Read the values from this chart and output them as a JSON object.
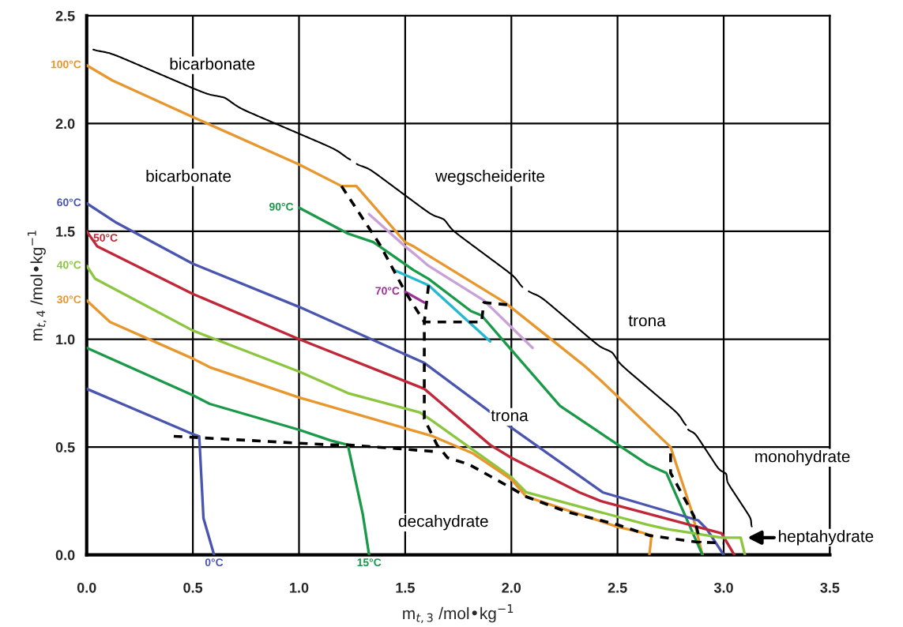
{
  "chart_data": {
    "type": "line",
    "xlabel": "m$_{t,3}$ /mol•kg$^{−1}$",
    "ylabel": "m$_{t,4}$ /mol•kg$^{−1}$",
    "xlim": [
      0,
      3.5
    ],
    "ylim": [
      0,
      2.5
    ],
    "xticks": [
      {
        "value": 0,
        "label": "0.0"
      },
      0.5,
      {
        "value": 1,
        "label": "1.0"
      },
      1.5,
      {
        "value": 2,
        "label": "2.0"
      },
      2.5,
      {
        "value": 3,
        "label": "3.0"
      },
      3.5
    ],
    "yticks": [
      {
        "value": 0,
        "label": "0.0"
      },
      0.5,
      {
        "value": 1,
        "label": "1.0"
      },
      1.5,
      {
        "value": 2,
        "label": "2.0"
      },
      2.5
    ],
    "grid": true,
    "series": [
      {
        "color": "#e8972e",
        "x": [
          0,
          0.12,
          0.5,
          1.0,
          1.2,
          1.27,
          1.5,
          1.54,
          1.97,
          2.34,
          2.42,
          2.75,
          2.85,
          2.9
        ],
        "values": [
          2.27,
          2.2,
          2.03,
          1.81,
          1.71,
          1.71,
          1.45,
          1.43,
          1.17,
          0.88,
          0.81,
          0.5,
          0.2,
          0
        ]
      },
      {
        "color": "#1a9a48",
        "x": [
          1.0,
          1.23,
          1.35,
          1.38,
          1.54,
          1.61,
          1.81,
          1.86,
          2.0,
          2.23,
          2.64,
          2.73,
          2.9
        ],
        "values": [
          1.61,
          1.49,
          1.45,
          1.43,
          1.32,
          1.28,
          1.13,
          1.11,
          0.95,
          0.69,
          0.42,
          0.38,
          0
        ]
      },
      {
        "color": "#c9a0d8",
        "x": [
          1.33,
          1.5,
          1.55,
          1.61,
          1.87,
          2.1
        ],
        "values": [
          1.58,
          1.43,
          1.39,
          1.34,
          1.18,
          0.96
        ]
      },
      {
        "color": "#25b8d0",
        "x": [
          1.45,
          1.61,
          1.9
        ],
        "values": [
          1.32,
          1.25,
          0.99
        ]
      },
      {
        "color": "#a0309a",
        "x": [
          1.5,
          1.59
        ],
        "values": [
          1.22,
          1.17
        ]
      },
      {
        "color": "#4a55b0",
        "x": [
          0,
          0.14,
          0.5,
          1.0,
          1.59,
          2.0,
          2.43,
          2.88,
          2.92,
          3.0
        ],
        "values": [
          1.63,
          1.54,
          1.35,
          1.15,
          0.89,
          0.59,
          0.29,
          0.16,
          0.12,
          0
        ]
      },
      {
        "color": "#c0283a",
        "x": [
          0,
          0.05,
          0.5,
          1.0,
          1.59,
          1.9,
          2.0,
          2.32,
          2.42,
          2.99,
          3.05
        ],
        "values": [
          1.5,
          1.43,
          1.21,
          1.0,
          0.77,
          0.51,
          0.45,
          0.29,
          0.25,
          0.1,
          0
        ]
      },
      {
        "color": "#8cc63f",
        "x": [
          0,
          0.04,
          0.5,
          1.0,
          1.23,
          1.57,
          1.63,
          2.0,
          2.07,
          2.64,
          2.73,
          2.99,
          3.08,
          3.1
        ],
        "values": [
          1.34,
          1.28,
          1.04,
          0.85,
          0.75,
          0.66,
          0.62,
          0.36,
          0.29,
          0.14,
          0.12,
          0.08,
          0.08,
          0
        ]
      },
      {
        "color": "#e8972e",
        "x": [
          0,
          0.11,
          0.5,
          0.58,
          1.0,
          1.63,
          1.82,
          2.0,
          2.07,
          2.5,
          2.61,
          2.66,
          2.65
        ],
        "values": [
          1.18,
          1.08,
          0.91,
          0.87,
          0.73,
          0.55,
          0.47,
          0.35,
          0.27,
          0.13,
          0.105,
          0.09,
          0
        ]
      },
      {
        "color": "#1a9a48",
        "x": [
          0,
          0.5,
          0.58,
          1.0,
          1.15,
          1.23,
          1.3,
          1.33
        ],
        "values": [
          0.96,
          0.74,
          0.7,
          0.58,
          0.53,
          0.51,
          0.19,
          0
        ]
      },
      {
        "color": "#4a55b0",
        "x": [
          0,
          0.5,
          0.53,
          0.55,
          0.6
        ],
        "values": [
          0.77,
          0.56,
          0.55,
          0.17,
          0
        ]
      },
      {
        "color": "#000000",
        "line_style": "dashed",
        "x": [
          1.2,
          1.38,
          1.5,
          1.59,
          1.86,
          1.87,
          1.98
        ],
        "values": [
          1.71,
          1.44,
          1.22,
          1.08,
          1.08,
          1.17,
          1.16
        ]
      },
      {
        "color": "#000000",
        "line_style": "dashed",
        "x": [
          1.61,
          1.59,
          1.59,
          1.59,
          1.65,
          1.7,
          1.8,
          2.0,
          2.07,
          2.26,
          2.5,
          2.65,
          2.87,
          3.0
        ],
        "values": [
          1.25,
          1.08,
          0.89,
          0.63,
          0.51,
          0.45,
          0.42,
          0.31,
          0.27,
          0.2,
          0.14,
          0.09,
          0.06,
          0.055
        ]
      },
      {
        "color": "#000000",
        "line_style": "dashed",
        "x": [
          0.41,
          1.15,
          1.23,
          1.63
        ],
        "values": [
          0.55,
          0.51,
          0.51,
          0.48
        ]
      },
      {
        "color": "#000000",
        "line_style": "dashed",
        "x": [
          2.75,
          2.75,
          2.86,
          2.89
        ],
        "values": [
          0.47,
          0.38,
          0.18,
          0.055
        ]
      }
    ],
    "annotations": [
      {
        "text": "100°C",
        "x": 0,
        "y": 2.27
      },
      {
        "text": "60°C",
        "x": 0,
        "y": 1.63
      },
      {
        "text": "50°C",
        "x": 0,
        "y": 1.5
      },
      {
        "text": "40°C",
        "x": 0,
        "y": 1.34
      },
      {
        "text": "30°C",
        "x": 0,
        "y": 1.18
      },
      {
        "text": "90°C",
        "x": 1.0,
        "y": 1.61
      },
      {
        "text": "70°C",
        "x": 1.5,
        "y": 1.22
      },
      {
        "text": "0°C",
        "x": 0.6,
        "y": 0
      },
      {
        "text": "15°C",
        "x": 1.33,
        "y": 0
      },
      "bicarbonate",
      "bicarbonate",
      "wegscheiderite",
      "trona",
      "trona",
      "monohydrate",
      "decahydrate",
      "heptahydrate"
    ]
  }
}
